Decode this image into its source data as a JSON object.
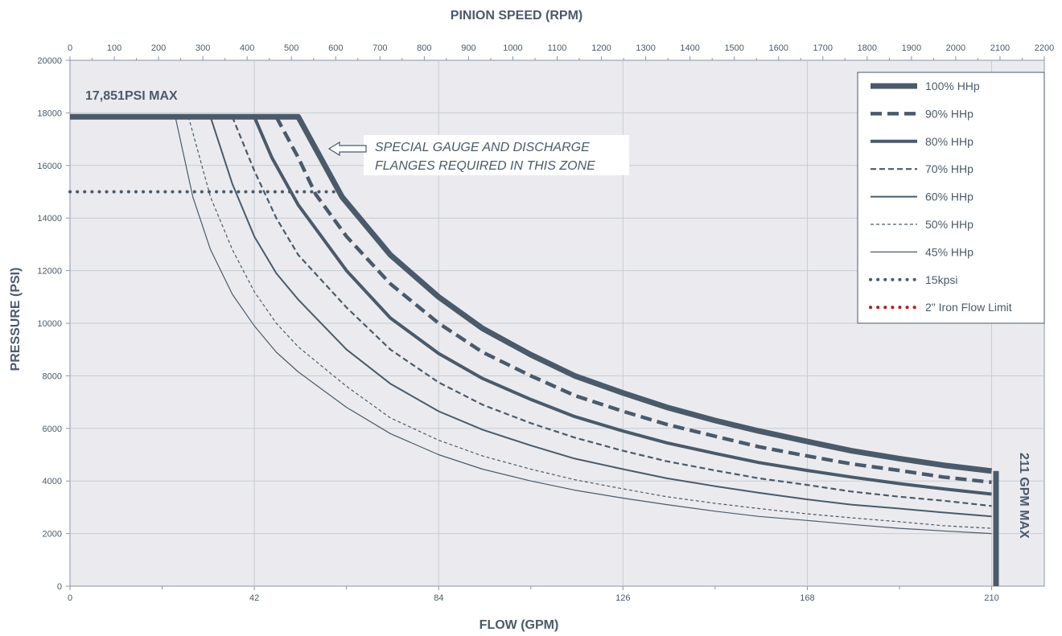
{
  "chart_data": {
    "type": "line",
    "title": "",
    "xlabel": "FLOW (GPM)",
    "x2label": "PINION SPEED (RPM)",
    "ylabel": "PRESSURE (PSI)",
    "xlim": [
      0,
      222
    ],
    "x2lim": [
      0,
      2200
    ],
    "ylim": [
      0,
      20000
    ],
    "x_ticks": [
      "0",
      "42",
      "84",
      "126",
      "168",
      "210"
    ],
    "x2_ticks": [
      "0",
      "100",
      "200",
      "300",
      "400",
      "500",
      "600",
      "700",
      "800",
      "900",
      "1000",
      "1100",
      "1200",
      "1300",
      "1400",
      "1500",
      "1600",
      "1700",
      "1800",
      "1900",
      "2000",
      "2100",
      "2200"
    ],
    "y_ticks": [
      "0",
      "2000",
      "4000",
      "6000",
      "8000",
      "10000",
      "12000",
      "14000",
      "16000",
      "18000",
      "20000"
    ],
    "grid": true,
    "legend_position": "top-right",
    "series": [
      {
        "name": "100% HHp",
        "color": "#4a5a6b",
        "style": "solid-heavy",
        "points": [
          [
            0,
            17851
          ],
          [
            52,
            17851
          ],
          [
            62,
            14800
          ],
          [
            73,
            12600
          ],
          [
            84,
            11000
          ],
          [
            94,
            9800
          ],
          [
            105,
            8800
          ],
          [
            115,
            8000
          ],
          [
            126,
            7350
          ],
          [
            136,
            6800
          ],
          [
            147,
            6300
          ],
          [
            157,
            5900
          ],
          [
            168,
            5500
          ],
          [
            178,
            5150
          ],
          [
            189,
            4850
          ],
          [
            199,
            4600
          ],
          [
            210,
            4380
          ]
        ]
      },
      {
        "name": "90% HHp",
        "color": "#4a5a6b",
        "style": "dashed-heavy",
        "points": [
          [
            47,
            17851
          ],
          [
            52,
            16300
          ],
          [
            56,
            14900
          ],
          [
            63,
            13300
          ],
          [
            73,
            11500
          ],
          [
            84,
            10000
          ],
          [
            94,
            8900
          ],
          [
            105,
            8000
          ],
          [
            115,
            7250
          ],
          [
            126,
            6650
          ],
          [
            136,
            6150
          ],
          [
            147,
            5700
          ],
          [
            157,
            5300
          ],
          [
            168,
            4950
          ],
          [
            178,
            4650
          ],
          [
            189,
            4400
          ],
          [
            199,
            4150
          ],
          [
            210,
            3950
          ]
        ]
      },
      {
        "name": "80% HHp",
        "color": "#4a5a6b",
        "style": "solid-medium",
        "points": [
          [
            42,
            17851
          ],
          [
            46,
            16300
          ],
          [
            52,
            14500
          ],
          [
            63,
            12000
          ],
          [
            73,
            10200
          ],
          [
            84,
            8850
          ],
          [
            94,
            7900
          ],
          [
            105,
            7100
          ],
          [
            115,
            6450
          ],
          [
            126,
            5900
          ],
          [
            136,
            5450
          ],
          [
            147,
            5050
          ],
          [
            157,
            4700
          ],
          [
            168,
            4400
          ],
          [
            178,
            4150
          ],
          [
            189,
            3900
          ],
          [
            199,
            3700
          ],
          [
            210,
            3500
          ]
        ]
      },
      {
        "name": "70% HHp",
        "color": "#4a5a6b",
        "style": "dashed-medium",
        "points": [
          [
            37,
            17851
          ],
          [
            42,
            15800
          ],
          [
            47,
            14000
          ],
          [
            52,
            12600
          ],
          [
            63,
            10600
          ],
          [
            73,
            9000
          ],
          [
            84,
            7750
          ],
          [
            94,
            6900
          ],
          [
            105,
            6200
          ],
          [
            115,
            5650
          ],
          [
            126,
            5150
          ],
          [
            136,
            4750
          ],
          [
            147,
            4400
          ],
          [
            157,
            4100
          ],
          [
            168,
            3850
          ],
          [
            178,
            3600
          ],
          [
            189,
            3400
          ],
          [
            199,
            3250
          ],
          [
            210,
            3050
          ]
        ]
      },
      {
        "name": "60% HHp",
        "color": "#4a5a6b",
        "style": "solid-thin",
        "points": [
          [
            32,
            17851
          ],
          [
            37,
            15300
          ],
          [
            42,
            13300
          ],
          [
            47,
            11900
          ],
          [
            52,
            10900
          ],
          [
            63,
            9000
          ],
          [
            73,
            7700
          ],
          [
            84,
            6650
          ],
          [
            94,
            5950
          ],
          [
            105,
            5350
          ],
          [
            115,
            4850
          ],
          [
            126,
            4450
          ],
          [
            136,
            4100
          ],
          [
            147,
            3800
          ],
          [
            157,
            3550
          ],
          [
            168,
            3300
          ],
          [
            178,
            3100
          ],
          [
            189,
            2950
          ],
          [
            199,
            2800
          ],
          [
            210,
            2650
          ]
        ]
      },
      {
        "name": "50% HHp",
        "color": "#4a5a6b",
        "style": "dashed-thin",
        "points": [
          [
            27,
            17851
          ],
          [
            32,
            14800
          ],
          [
            37,
            12800
          ],
          [
            42,
            11200
          ],
          [
            47,
            10000
          ],
          [
            52,
            9100
          ],
          [
            63,
            7600
          ],
          [
            73,
            6400
          ],
          [
            84,
            5550
          ],
          [
            94,
            4950
          ],
          [
            105,
            4450
          ],
          [
            115,
            4050
          ],
          [
            126,
            3700
          ],
          [
            136,
            3400
          ],
          [
            147,
            3150
          ],
          [
            157,
            2950
          ],
          [
            168,
            2750
          ],
          [
            178,
            2600
          ],
          [
            189,
            2450
          ],
          [
            199,
            2300
          ],
          [
            210,
            2200
          ]
        ]
      },
      {
        "name": "45% HHp",
        "color": "#4a5a6b",
        "style": "solid-hair",
        "points": [
          [
            24,
            17851
          ],
          [
            28,
            14800
          ],
          [
            32,
            12800
          ],
          [
            37,
            11100
          ],
          [
            42,
            9900
          ],
          [
            47,
            8900
          ],
          [
            52,
            8150
          ],
          [
            63,
            6800
          ],
          [
            73,
            5800
          ],
          [
            84,
            5000
          ],
          [
            94,
            4450
          ],
          [
            105,
            4000
          ],
          [
            115,
            3650
          ],
          [
            126,
            3350
          ],
          [
            136,
            3100
          ],
          [
            147,
            2850
          ],
          [
            157,
            2650
          ],
          [
            168,
            2500
          ],
          [
            178,
            2350
          ],
          [
            189,
            2200
          ],
          [
            199,
            2100
          ],
          [
            210,
            2000
          ]
        ]
      },
      {
        "name": "15kpsi",
        "color": "#4a5a6b",
        "style": "dotted",
        "points": [
          [
            0,
            15000
          ],
          [
            61,
            15000
          ]
        ]
      },
      {
        "name": "2\" Iron Flow Limit",
        "color": "#b31b1b",
        "style": "dotted",
        "points": []
      }
    ],
    "max_flow_line": {
      "x": 211,
      "y": [
        0,
        4380
      ]
    },
    "annotations": {
      "pressure_max": "17,851PSI MAX",
      "flow_max": "211 GPM MAX",
      "zone_line1": "SPECIAL GAUGE AND  DISCHARGE",
      "zone_line2": "FLANGES REQUIRED IN THIS ZONE"
    }
  }
}
